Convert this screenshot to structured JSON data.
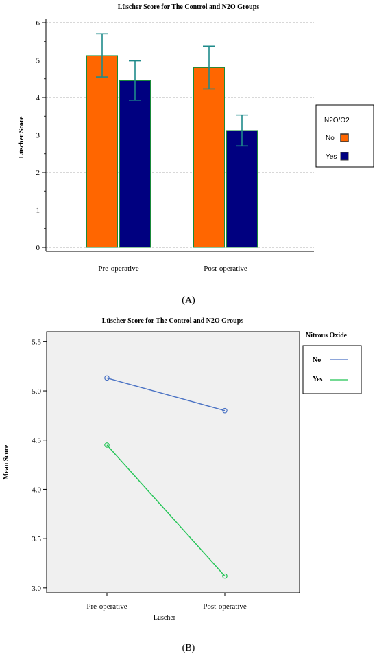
{
  "chart_data": [
    {
      "type": "bar",
      "title": "Lüscher Score for The Control and N2O Groups",
      "ylabel": "Lüscher Score",
      "xlabel": "",
      "ylim": [
        0,
        6
      ],
      "yticks": [
        "0",
        "1",
        "2",
        "3",
        "4",
        "5",
        "6"
      ],
      "grid": true,
      "categories": [
        "Pre-operative",
        "Post-operative"
      ],
      "legend": {
        "title": "N2O/O2",
        "placement": "right"
      },
      "series": [
        {
          "name": "No",
          "color": "#ff6600",
          "values": [
            5.12,
            4.8
          ],
          "err_low": [
            4.55,
            4.23
          ],
          "err_high": [
            5.7,
            5.37
          ]
        },
        {
          "name": "Yes",
          "color": "#000080",
          "values": [
            4.45,
            3.12
          ],
          "err_low": [
            3.93,
            2.71
          ],
          "err_high": [
            4.98,
            3.53
          ]
        }
      ],
      "error_bar_color": "#1e8a8a",
      "panel_label": "(A)"
    },
    {
      "type": "line",
      "title": "Lüscher Score for The Control and N2O Groups",
      "ylabel": "Mean Score",
      "xlabel": "Lüscher",
      "ylim": [
        2.95,
        5.6
      ],
      "yticks": [
        "3.0",
        "3.5",
        "4.0",
        "4.5",
        "5.0",
        "5.5"
      ],
      "grid": false,
      "categories": [
        "Pre-operative",
        "Post-operative"
      ],
      "legend": {
        "title": "Nitrous Oxide",
        "placement": "right"
      },
      "series": [
        {
          "name": "No",
          "color": "#4a72c4",
          "values": [
            5.13,
            4.8
          ]
        },
        {
          "name": "Yes",
          "color": "#22c455",
          "values": [
            4.45,
            3.12
          ]
        }
      ],
      "panel_label": "(B)"
    }
  ]
}
